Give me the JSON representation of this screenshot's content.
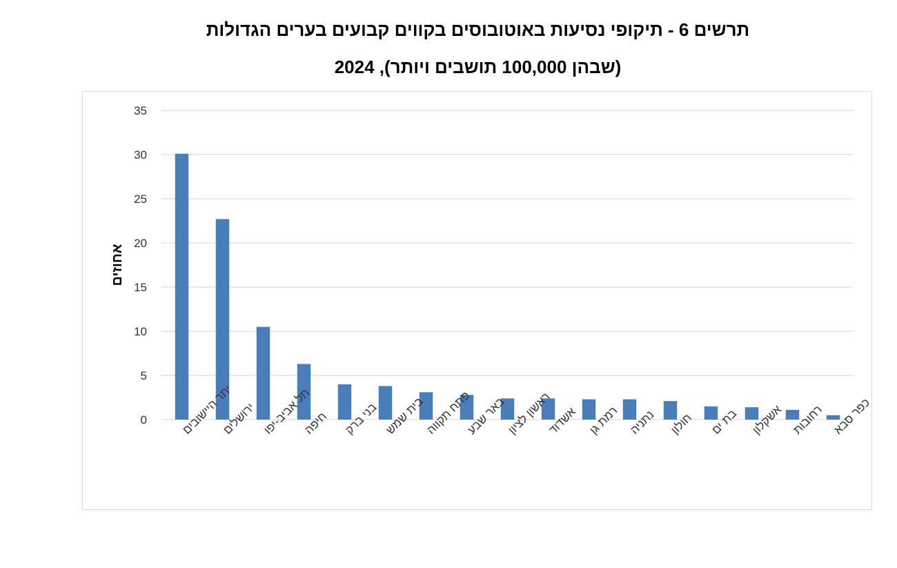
{
  "chart_data": {
    "type": "bar",
    "title": "תרשים 6 - תיקופי נסיעות באוטובוסים בקווים קבועים בערים הגדולות",
    "subtitle": "(שבהן 100,000 תושבים ויותר), 2024",
    "xlabel": "",
    "ylabel": "אחוזים",
    "ylim": [
      0,
      35
    ],
    "yticks": [
      0,
      5,
      10,
      15,
      20,
      25,
      30,
      35
    ],
    "grid": true,
    "legend": "none",
    "bar_color": "#4a7ebb",
    "categories": [
      "יתר היישובים",
      "ירושלים",
      "תל אביב-יפו",
      "חיפה",
      "בני ברק",
      "בית שמש",
      "פתח תקווה",
      "באר שבע",
      "ראשון לציון",
      "אשדוד",
      "רמת גן",
      "נתניה",
      "חולון",
      "בת ים",
      "אשקלון",
      "רחובות",
      "כפר סבא"
    ],
    "values": [
      30.1,
      22.7,
      10.5,
      6.3,
      4.0,
      3.8,
      3.1,
      2.8,
      2.4,
      2.4,
      2.3,
      2.3,
      2.1,
      1.5,
      1.4,
      1.1,
      0.5
    ]
  }
}
